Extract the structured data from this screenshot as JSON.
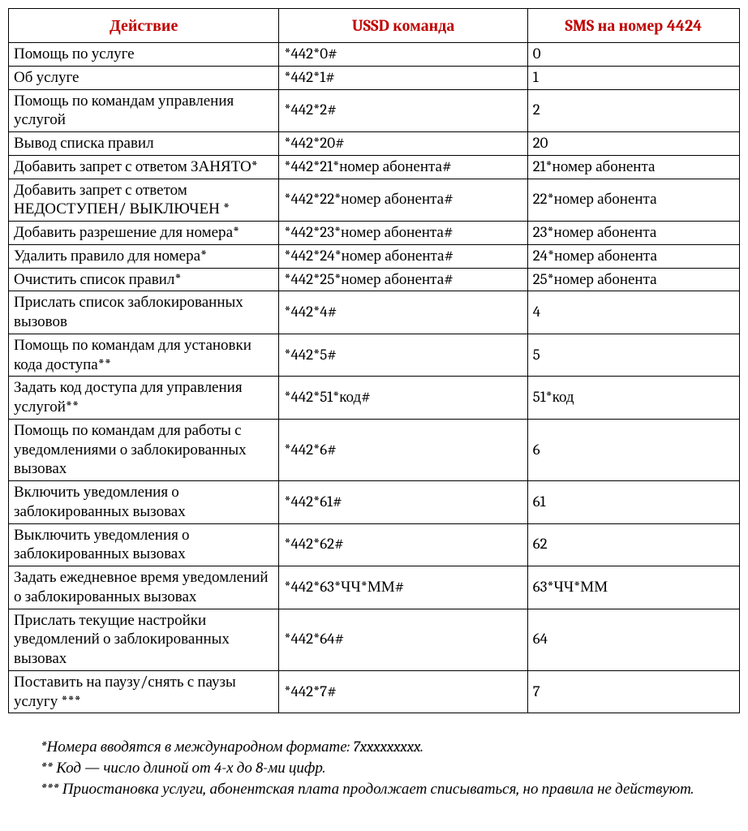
{
  "table": {
    "headers": {
      "action": "Действие",
      "ussd": "USSD команда",
      "sms": "SMS на номер 4424"
    },
    "rows": [
      {
        "action": "Помощь по услуге",
        "ussd": "*442*0#",
        "sms": "0"
      },
      {
        "action": "Об услуге",
        "ussd": "*442*1#",
        "sms": "1"
      },
      {
        "action": "Помощь по командам управления услугой",
        "ussd": "*442*2#",
        "sms": "2"
      },
      {
        "action": "Вывод списка правил",
        "ussd": "*442*20#",
        "sms": "20"
      },
      {
        "action": "Добавить запрет с ответом ЗАНЯТО*",
        "ussd": "*442*21*номер абонента#",
        "sms": "21*номер абонента"
      },
      {
        "action": "Добавить запрет с ответом НЕДОСТУПЕН/ ВЫКЛЮЧЕН *",
        "ussd": "*442*22*номер абонента#",
        "sms": "22*номер абонента"
      },
      {
        "action": "Добавить разрешение для номера*",
        "ussd": "*442*23*номер абонента#",
        "sms": "23*номер абонента"
      },
      {
        "action": "Удалить правило для номера*",
        "ussd": "*442*24*номер абонента#",
        "sms": "24*номер абонента"
      },
      {
        "action": "Очистить список правил*",
        "ussd": "*442*25*номер абонента#",
        "sms": "25*номер абонента"
      },
      {
        "action": "Прислать список заблокированных вызовов",
        "ussd": "*442*4#",
        "sms": "4"
      },
      {
        "action": "Помощь по командам для установки кода доступа**",
        "ussd": "*442*5#",
        "sms": "5"
      },
      {
        "action": "Задать код доступа для управления услугой**",
        "ussd": "*442*51*код#",
        "sms": "51*код"
      },
      {
        "action": "Помощь по командам для работы с уведомлениями о заблокированных вызовах",
        "ussd": "*442*6#",
        "sms": "6"
      },
      {
        "action": "Включить уведомления о заблокированных вызовах",
        "ussd": "*442*61#",
        "sms": "61"
      },
      {
        "action": "Выключить уведомления о заблокированных вызовах",
        "ussd": "*442*62#",
        "sms": "62"
      },
      {
        "action": "Задать ежедневное время уведомлений о заблокированных вызовах",
        "ussd": "*442*63*ЧЧ*ММ#",
        "sms": "63*ЧЧ*ММ"
      },
      {
        "action": "Прислать текущие настройки уведомлений о заблокированных вызовах",
        "ussd": "*442*64#",
        "sms": "64"
      },
      {
        "action": "Поставить на паузу/снять с паузы услугу ***",
        "ussd": "*442*7#",
        "sms": "7"
      }
    ]
  },
  "footnotes": {
    "n1": "*Номера вводятся в международном формате: 7xxxxxxxxx.",
    "n2": "** Код — число длиной от 4-х до 8-ми цифр.",
    "n3": "*** Приостановка услуги, абонентская плата продолжает списываться, но правила не действуют."
  }
}
